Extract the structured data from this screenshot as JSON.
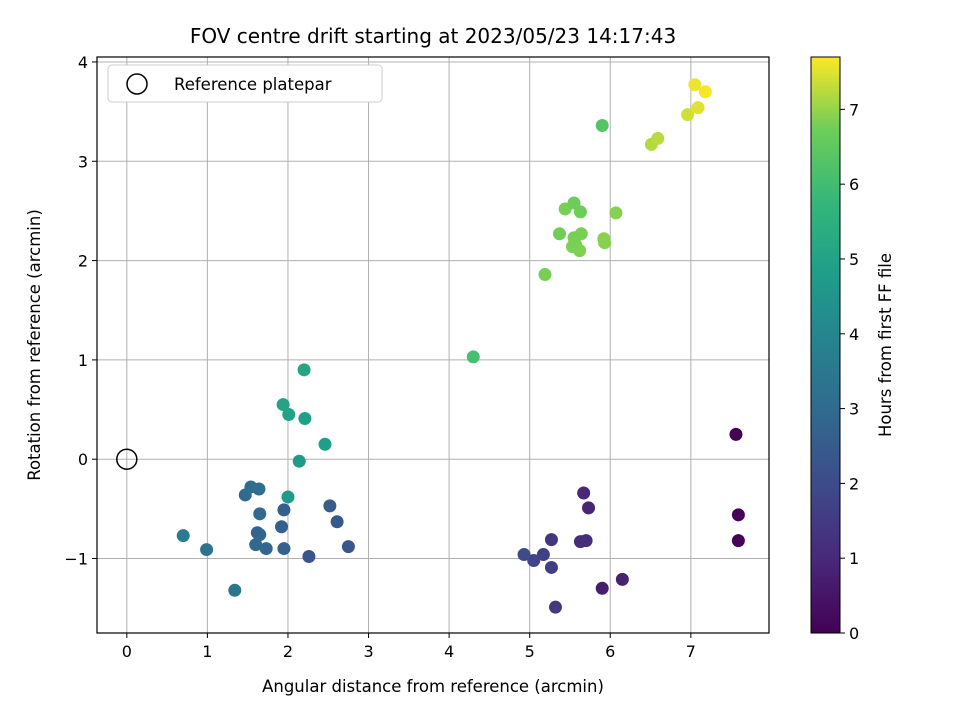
{
  "chart_data": {
    "type": "scatter",
    "title": "FOV centre drift starting at 2023/05/23 14:17:43",
    "xlabel": "Angular distance from reference (arcmin)",
    "ylabel": "Rotation from reference (arcmin)",
    "xlim": [
      -0.37,
      7.97
    ],
    "ylim": [
      -1.75,
      4.05
    ],
    "xticks": [
      0,
      1,
      2,
      3,
      4,
      5,
      6,
      7
    ],
    "yticks": [
      -1,
      0,
      1,
      2,
      3,
      4
    ],
    "grid": true,
    "legend": {
      "position": "top-left",
      "entries": [
        "Reference platepar"
      ]
    },
    "reference_point": {
      "x": 0,
      "y": 0
    },
    "colorbar": {
      "label": "Hours from first FF file",
      "colormap": "viridis",
      "range": [
        0,
        7.7
      ],
      "ticks": [
        0,
        1,
        2,
        3,
        4,
        5,
        6,
        7
      ]
    },
    "points": [
      {
        "x": 7.56,
        "y": 0.25,
        "c": 0.02
      },
      {
        "x": 7.59,
        "y": -0.56,
        "c": 0.05
      },
      {
        "x": 7.59,
        "y": -0.82,
        "c": 0.05
      },
      {
        "x": 5.9,
        "y": -1.3,
        "c": 0.7
      },
      {
        "x": 6.15,
        "y": -1.21,
        "c": 0.8
      },
      {
        "x": 5.73,
        "y": -0.49,
        "c": 0.9
      },
      {
        "x": 5.67,
        "y": -0.34,
        "c": 1.0
      },
      {
        "x": 5.7,
        "y": -0.82,
        "c": 1.1
      },
      {
        "x": 5.63,
        "y": -0.83,
        "c": 1.15
      },
      {
        "x": 5.27,
        "y": -0.81,
        "c": 1.4
      },
      {
        "x": 5.32,
        "y": -1.49,
        "c": 1.5
      },
      {
        "x": 5.27,
        "y": -1.09,
        "c": 1.6
      },
      {
        "x": 5.17,
        "y": -0.96,
        "c": 1.7
      },
      {
        "x": 5.05,
        "y": -1.02,
        "c": 1.8
      },
      {
        "x": 4.93,
        "y": -0.96,
        "c": 2.0
      },
      {
        "x": 2.26,
        "y": -0.98,
        "c": 2.3
      },
      {
        "x": 2.75,
        "y": -0.88,
        "c": 2.35
      },
      {
        "x": 2.61,
        "y": -0.63,
        "c": 2.45
      },
      {
        "x": 2.52,
        "y": -0.47,
        "c": 2.55
      },
      {
        "x": 1.95,
        "y": -0.51,
        "c": 2.6
      },
      {
        "x": 1.92,
        "y": -0.68,
        "c": 2.65
      },
      {
        "x": 1.95,
        "y": -0.9,
        "c": 2.7
      },
      {
        "x": 1.62,
        "y": -0.74,
        "c": 2.75
      },
      {
        "x": 1.65,
        "y": -0.76,
        "c": 2.8
      },
      {
        "x": 1.6,
        "y": -0.86,
        "c": 2.85
      },
      {
        "x": 1.73,
        "y": -0.9,
        "c": 2.9
      },
      {
        "x": 1.65,
        "y": -0.55,
        "c": 2.95
      },
      {
        "x": 1.47,
        "y": -0.36,
        "c": 3.0
      },
      {
        "x": 1.54,
        "y": -0.28,
        "c": 3.05
      },
      {
        "x": 1.64,
        "y": -0.3,
        "c": 3.1
      },
      {
        "x": 0.99,
        "y": -0.91,
        "c": 3.3
      },
      {
        "x": 1.34,
        "y": -1.32,
        "c": 3.4
      },
      {
        "x": 0.7,
        "y": -0.77,
        "c": 3.6
      },
      {
        "x": 2.0,
        "y": -0.38,
        "c": 4.7
      },
      {
        "x": 2.14,
        "y": -0.02,
        "c": 4.75
      },
      {
        "x": 2.46,
        "y": 0.15,
        "c": 4.8
      },
      {
        "x": 2.21,
        "y": 0.41,
        "c": 4.9
      },
      {
        "x": 2.01,
        "y": 0.45,
        "c": 5.0
      },
      {
        "x": 1.94,
        "y": 0.55,
        "c": 5.05
      },
      {
        "x": 2.2,
        "y": 0.9,
        "c": 5.1
      },
      {
        "x": 4.3,
        "y": 1.03,
        "c": 6.1
      },
      {
        "x": 5.9,
        "y": 3.36,
        "c": 6.3
      },
      {
        "x": 5.19,
        "y": 1.86,
        "c": 6.8
      },
      {
        "x": 5.37,
        "y": 2.27,
        "c": 6.75
      },
      {
        "x": 5.44,
        "y": 2.52,
        "c": 6.8
      },
      {
        "x": 5.55,
        "y": 2.58,
        "c": 6.7
      },
      {
        "x": 5.63,
        "y": 2.49,
        "c": 6.7
      },
      {
        "x": 5.55,
        "y": 2.23,
        "c": 6.8
      },
      {
        "x": 5.53,
        "y": 2.14,
        "c": 6.85
      },
      {
        "x": 5.57,
        "y": 2.16,
        "c": 6.8
      },
      {
        "x": 5.62,
        "y": 2.1,
        "c": 6.85
      },
      {
        "x": 5.64,
        "y": 2.27,
        "c": 6.8
      },
      {
        "x": 5.92,
        "y": 2.22,
        "c": 6.9
      },
      {
        "x": 5.93,
        "y": 2.18,
        "c": 6.9
      },
      {
        "x": 6.07,
        "y": 2.48,
        "c": 6.9
      },
      {
        "x": 6.51,
        "y": 3.17,
        "c": 7.2
      },
      {
        "x": 6.59,
        "y": 3.23,
        "c": 7.25
      },
      {
        "x": 6.96,
        "y": 3.47,
        "c": 7.4
      },
      {
        "x": 7.09,
        "y": 3.54,
        "c": 7.5
      },
      {
        "x": 7.05,
        "y": 3.77,
        "c": 7.6
      },
      {
        "x": 7.18,
        "y": 3.7,
        "c": 7.65
      }
    ]
  }
}
